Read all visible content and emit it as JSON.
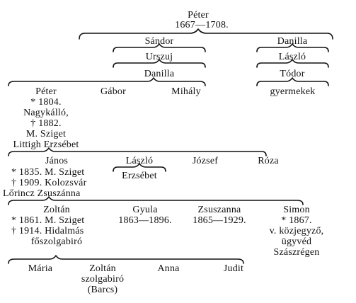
{
  "root": {
    "name": "Péter",
    "years": "1667––1708."
  },
  "gen2": {
    "left": "Sándor",
    "right": "Danilla"
  },
  "gen3": {
    "left": "Urszuj",
    "right": "László"
  },
  "gen4": {
    "left": "Danilla",
    "right": "Tódor"
  },
  "gen5": {
    "peter": {
      "name": "Péter",
      "lines": [
        "* 1804.",
        "Nagykálló,",
        "† 1882.",
        "M. Sziget",
        "Littigh Erzsébet"
      ]
    },
    "gabor": "Gábor",
    "mihaly": "Mihály",
    "gyermekek": "gyermekek"
  },
  "gen6": {
    "janos": {
      "name": "János",
      "lines": [
        "* 1835. M. Sziget",
        "† 1909. Kolozsvár",
        "Lőrincz Zsuszánna"
      ]
    },
    "laszlo": "László",
    "erzsebet": "Erzsébet",
    "jozsef": "József",
    "roza": "Róza"
  },
  "gen7": {
    "zoltan": {
      "name": "Zoltán",
      "lines": [
        "* 1861. M. Sziget",
        "† 1914. Hidalmás",
        "főszolgabiró"
      ]
    },
    "gyula": {
      "name": "Gyula",
      "years": "1863—1896."
    },
    "zsuzsanna": {
      "name": "Zsuszanna",
      "years": "1865—1929."
    },
    "simon": {
      "name": "Simon",
      "lines": [
        "* 1867.",
        "v. közjegyző,",
        "ügyvéd",
        "Szászrégen"
      ]
    }
  },
  "gen8": {
    "maria": "Mária",
    "zoltan": {
      "name": "Zoltán",
      "lines": [
        "szolgabiró",
        "(Barcs)"
      ]
    },
    "anna": "Anna",
    "judit": "Judit"
  }
}
